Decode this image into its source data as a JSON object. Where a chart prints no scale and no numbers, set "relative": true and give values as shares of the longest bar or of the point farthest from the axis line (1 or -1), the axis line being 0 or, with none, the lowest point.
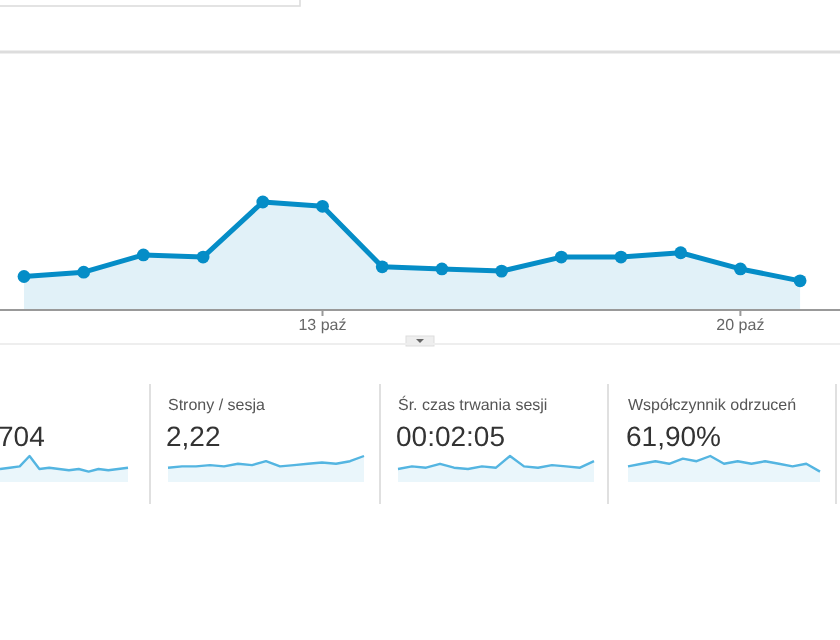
{
  "chart_data": [
    {
      "type": "area",
      "relative": true,
      "categories": [
        null,
        null,
        null,
        null,
        null,
        "13 paź",
        null,
        null,
        null,
        null,
        null,
        null,
        "20 paź",
        null
      ],
      "series": [
        {
          "color": "#058dc7",
          "values": [
            0.31,
            0.35,
            0.51,
            0.49,
            1,
            0.96,
            0.4,
            0.38,
            0.36,
            0.49,
            0.49,
            0.53,
            0.38,
            0.27
          ]
        }
      ],
      "marker": "circle"
    },
    {
      "type": "area",
      "relative": true,
      "subtitle": "704",
      "categories": [
        null,
        null,
        null,
        null,
        null,
        null,
        null,
        null,
        null,
        null,
        null,
        null,
        null,
        null
      ],
      "series": [
        {
          "color": "#54b5e1",
          "values": [
            0.5,
            0.55,
            0.6,
            1,
            0.5,
            0.55,
            0.5,
            0.45,
            0.5,
            0.4,
            0.5,
            0.45,
            0.5,
            0.55
          ]
        }
      ]
    },
    {
      "type": "area",
      "relative": true,
      "title": "Strony / sesja",
      "subtitle": "2,22",
      "categories": [
        null,
        null,
        null,
        null,
        null,
        null,
        null,
        null,
        null,
        null,
        null,
        null,
        null,
        null,
        null
      ],
      "series": [
        {
          "color": "#54b5e1",
          "values": [
            0.55,
            0.6,
            0.6,
            0.65,
            0.6,
            0.7,
            0.65,
            0.8,
            0.6,
            0.65,
            0.7,
            0.75,
            0.7,
            0.8,
            1
          ]
        }
      ]
    },
    {
      "type": "area",
      "relative": true,
      "title": "Śr. czas trwania sesji",
      "subtitle": "00:02:05",
      "categories": [
        null,
        null,
        null,
        null,
        null,
        null,
        null,
        null,
        null,
        null,
        null,
        null,
        null,
        null,
        null
      ],
      "series": [
        {
          "color": "#54b5e1",
          "values": [
            0.5,
            0.6,
            0.55,
            0.7,
            0.55,
            0.5,
            0.6,
            0.55,
            1,
            0.6,
            0.55,
            0.65,
            0.6,
            0.55,
            0.8
          ]
        }
      ]
    },
    {
      "type": "area",
      "relative": true,
      "title": "Współczynnik odrzuceń",
      "subtitle": "61,90%",
      "categories": [
        null,
        null,
        null,
        null,
        null,
        null,
        null,
        null,
        null,
        null,
        null,
        null,
        null,
        null,
        null
      ],
      "series": [
        {
          "color": "#54b5e1",
          "values": [
            0.6,
            0.7,
            0.8,
            0.7,
            0.9,
            0.8,
            1,
            0.7,
            0.8,
            0.7,
            0.8,
            0.7,
            0.6,
            0.7,
            0.4
          ]
        }
      ]
    }
  ]
}
